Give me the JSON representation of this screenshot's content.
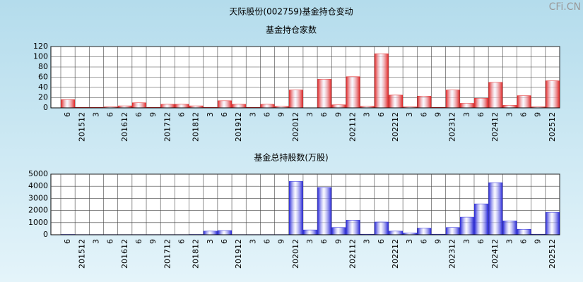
{
  "title": "天际股份(002759)基金持仓变动",
  "watermark": "CFi.CN",
  "chart_data": [
    {
      "type": "bar",
      "title": "基金持仓家数",
      "color": "#e02828",
      "categories": [
        "6",
        "201512",
        "3",
        "6",
        "201612",
        "6",
        "9",
        "201712",
        "6",
        "201812",
        "3",
        "6",
        "201912",
        "3",
        "6",
        "9",
        "202012",
        "3",
        "6",
        "9",
        "202112",
        "3",
        "6",
        "202212",
        "3",
        "6",
        "9",
        "202312",
        "3",
        "6",
        "202412",
        "3",
        "6",
        "9",
        "202512"
      ],
      "values": [
        16,
        1,
        1,
        2,
        4,
        10,
        1,
        7,
        7,
        4,
        1,
        14,
        7,
        1,
        7,
        3,
        35,
        0,
        56,
        6,
        61,
        3,
        106,
        25,
        2,
        23,
        1,
        35,
        9,
        19,
        50,
        5,
        24,
        2,
        53
      ],
      "ylim": [
        0,
        120
      ],
      "yticks": [
        0,
        20,
        40,
        60,
        80,
        100,
        120
      ],
      "grid": true
    },
    {
      "type": "bar",
      "title": "基金总持股数(万股)",
      "color": "#2828d8",
      "categories": [
        "6",
        "201512",
        "3",
        "6",
        "201612",
        "6",
        "9",
        "201712",
        "6",
        "201812",
        "3",
        "6",
        "201912",
        "3",
        "6",
        "9",
        "202012",
        "3",
        "6",
        "9",
        "202112",
        "3",
        "6",
        "202212",
        "3",
        "6",
        "9",
        "202312",
        "3",
        "6",
        "202412",
        "3",
        "6",
        "9",
        "202512"
      ],
      "values": [
        30,
        20,
        20,
        20,
        20,
        20,
        20,
        20,
        20,
        30,
        300,
        350,
        20,
        20,
        20,
        20,
        4400,
        400,
        3900,
        600,
        1200,
        50,
        1050,
        300,
        150,
        550,
        50,
        600,
        1450,
        2550,
        4300,
        1150,
        450,
        50,
        1850
      ],
      "ylim": [
        0,
        5000
      ],
      "yticks": [
        0,
        1000,
        2000,
        3000,
        4000,
        5000
      ],
      "grid": true
    }
  ]
}
